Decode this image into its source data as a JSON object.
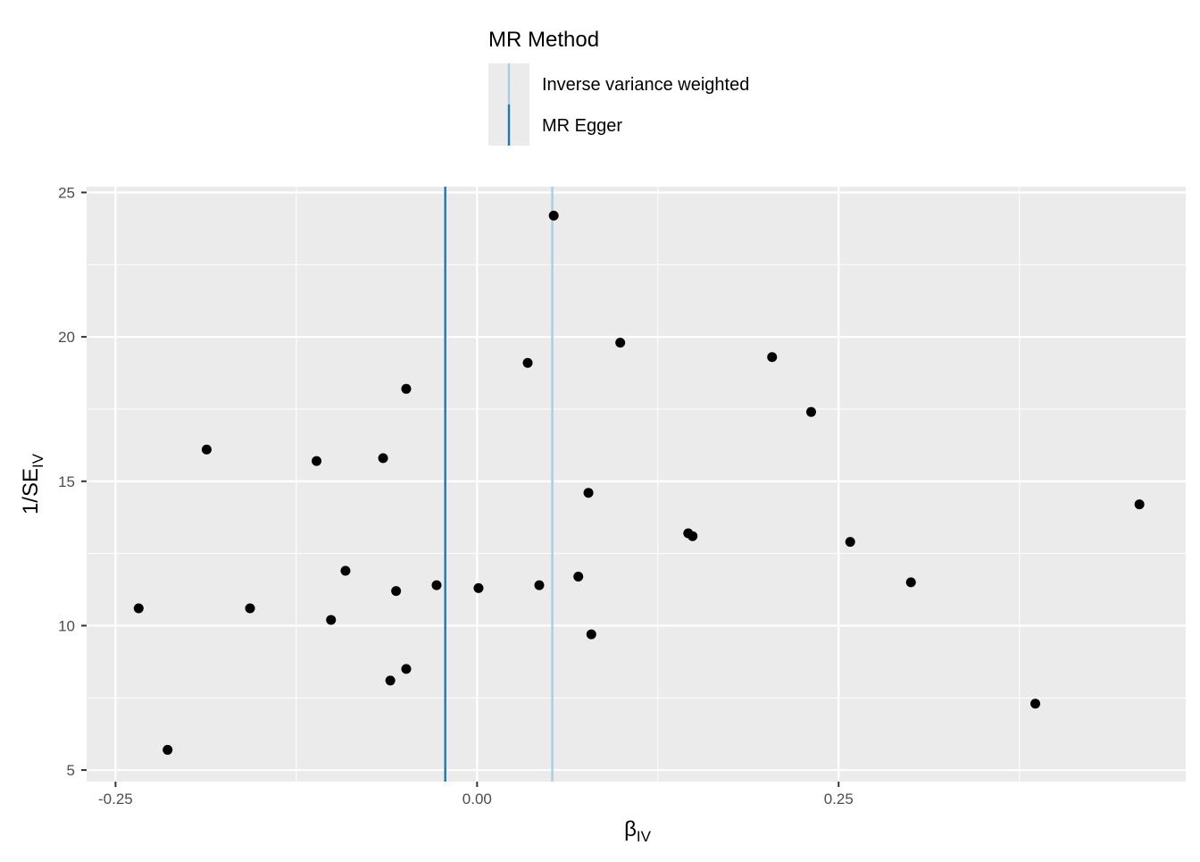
{
  "legend": {
    "title": "MR Method",
    "items": [
      {
        "label": "Inverse variance weighted",
        "color": "#a6cee3"
      },
      {
        "label": "MR Egger",
        "color": "#1f78b4"
      }
    ]
  },
  "axes": {
    "x_title_main": "β",
    "x_title_sub": "IV",
    "y_title_main": "1/SE",
    "y_title_sub": "IV"
  },
  "chart_data": {
    "type": "scatter",
    "xlim": [
      -0.27,
      0.49
    ],
    "ylim": [
      4.6,
      25.2
    ],
    "x_ticks": [
      -0.25,
      0.0,
      0.25
    ],
    "x_tick_labels": [
      "-0.25",
      "0.00",
      "0.25"
    ],
    "y_ticks": [
      5,
      10,
      15,
      20,
      25
    ],
    "y_tick_labels": [
      "5",
      "10",
      "15",
      "20",
      "25"
    ],
    "grid": true,
    "legend_position": "top",
    "points": [
      {
        "x": 0.053,
        "y": 24.2
      },
      {
        "x": 0.099,
        "y": 19.8
      },
      {
        "x": 0.204,
        "y": 19.3
      },
      {
        "x": 0.035,
        "y": 19.1
      },
      {
        "x": -0.049,
        "y": 18.2
      },
      {
        "x": 0.231,
        "y": 17.4
      },
      {
        "x": -0.187,
        "y": 16.1
      },
      {
        "x": -0.111,
        "y": 15.7
      },
      {
        "x": -0.065,
        "y": 15.8
      },
      {
        "x": 0.077,
        "y": 14.6
      },
      {
        "x": 0.458,
        "y": 14.2
      },
      {
        "x": 0.146,
        "y": 13.2
      },
      {
        "x": 0.149,
        "y": 13.1
      },
      {
        "x": 0.258,
        "y": 12.9
      },
      {
        "x": -0.091,
        "y": 11.9
      },
      {
        "x": 0.07,
        "y": 11.7
      },
      {
        "x": 0.3,
        "y": 11.5
      },
      {
        "x": -0.028,
        "y": 11.4
      },
      {
        "x": 0.043,
        "y": 11.4
      },
      {
        "x": 0.001,
        "y": 11.3
      },
      {
        "x": -0.056,
        "y": 11.2
      },
      {
        "x": -0.157,
        "y": 10.6
      },
      {
        "x": -0.234,
        "y": 10.6
      },
      {
        "x": -0.101,
        "y": 10.2
      },
      {
        "x": 0.079,
        "y": 9.7
      },
      {
        "x": -0.049,
        "y": 8.5
      },
      {
        "x": -0.06,
        "y": 8.1
      },
      {
        "x": 0.386,
        "y": 7.3
      },
      {
        "x": -0.214,
        "y": 5.7
      }
    ],
    "vlines": [
      {
        "method": "Inverse variance weighted",
        "x": 0.052,
        "color": "#a6cee3"
      },
      {
        "method": "MR Egger",
        "x": -0.022,
        "color": "#1f78b4"
      }
    ]
  }
}
